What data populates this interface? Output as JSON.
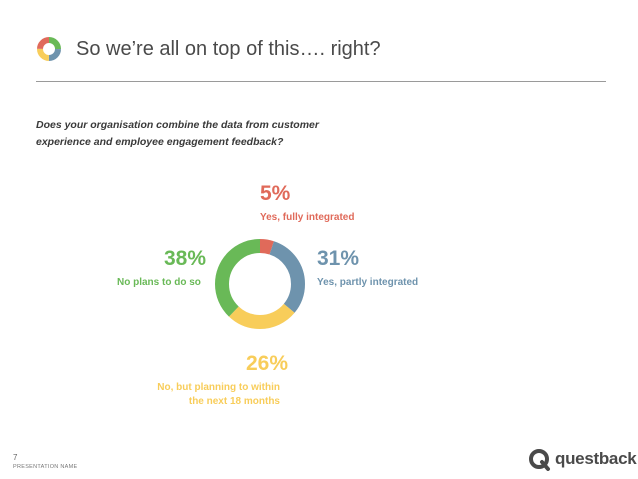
{
  "slide": {
    "title": "So we’re all on top of this…. right?",
    "question": "Does your organisation combine the data from customer experience and employee engagement feedback?",
    "page_number": "7",
    "footer_label": "PRESENTATION NAME",
    "brand": "questback",
    "colors": {
      "red": "#e06a5a",
      "blue": "#6e93ad",
      "yellow": "#f8cd5a",
      "green": "#69b957",
      "text": "#4a4a4a",
      "rule": "#9a9a9a"
    }
  },
  "chart_data": {
    "type": "pie",
    "donut": true,
    "slices": [
      {
        "label_pct": "5%",
        "value": 5,
        "label": "Yes, fully integrated",
        "color": "#e06a5a"
      },
      {
        "label_pct": "31%",
        "value": 31,
        "label": "Yes, partly integrated",
        "color": "#6e93ad"
      },
      {
        "label_pct": "26%",
        "value": 26,
        "label": "No, but planning to within the next 18 months",
        "color": "#f8cd5a"
      },
      {
        "label_pct": "38%",
        "value": 38,
        "label": "No plans to do so",
        "color": "#69b957"
      }
    ]
  }
}
